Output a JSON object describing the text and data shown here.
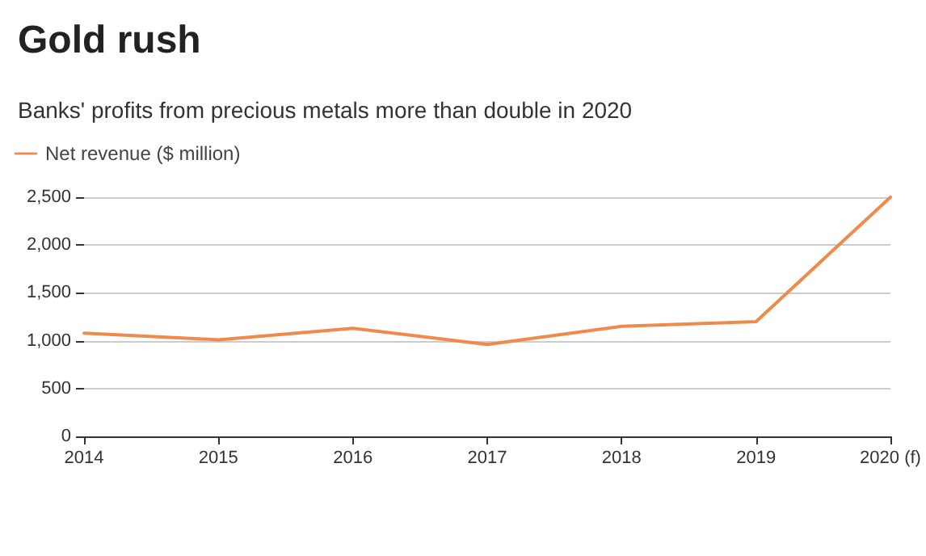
{
  "chart_data": {
    "type": "line",
    "title": "Gold rush",
    "subtitle": "Banks' profits from precious metals more than double in 2020",
    "categories": [
      "2014",
      "2015",
      "2016",
      "2017",
      "2018",
      "2019",
      "2020 (f)"
    ],
    "series": [
      {
        "name": "Net revenue ($ million)",
        "color": "#f0894a",
        "values": [
          1080,
          1010,
          1130,
          960,
          1150,
          1200,
          2500
        ]
      }
    ],
    "ylim": [
      0,
      2500
    ],
    "yticks": [
      0,
      500,
      {
        "value": 1000,
        "label": "1,000"
      },
      {
        "value": 1500,
        "label": "1,500"
      },
      {
        "value": 2000,
        "label": "2,000"
      },
      {
        "value": 2500,
        "label": "2,500"
      }
    ],
    "grid": "y",
    "legend": "top left",
    "marker": "none",
    "line_style": "solid"
  }
}
